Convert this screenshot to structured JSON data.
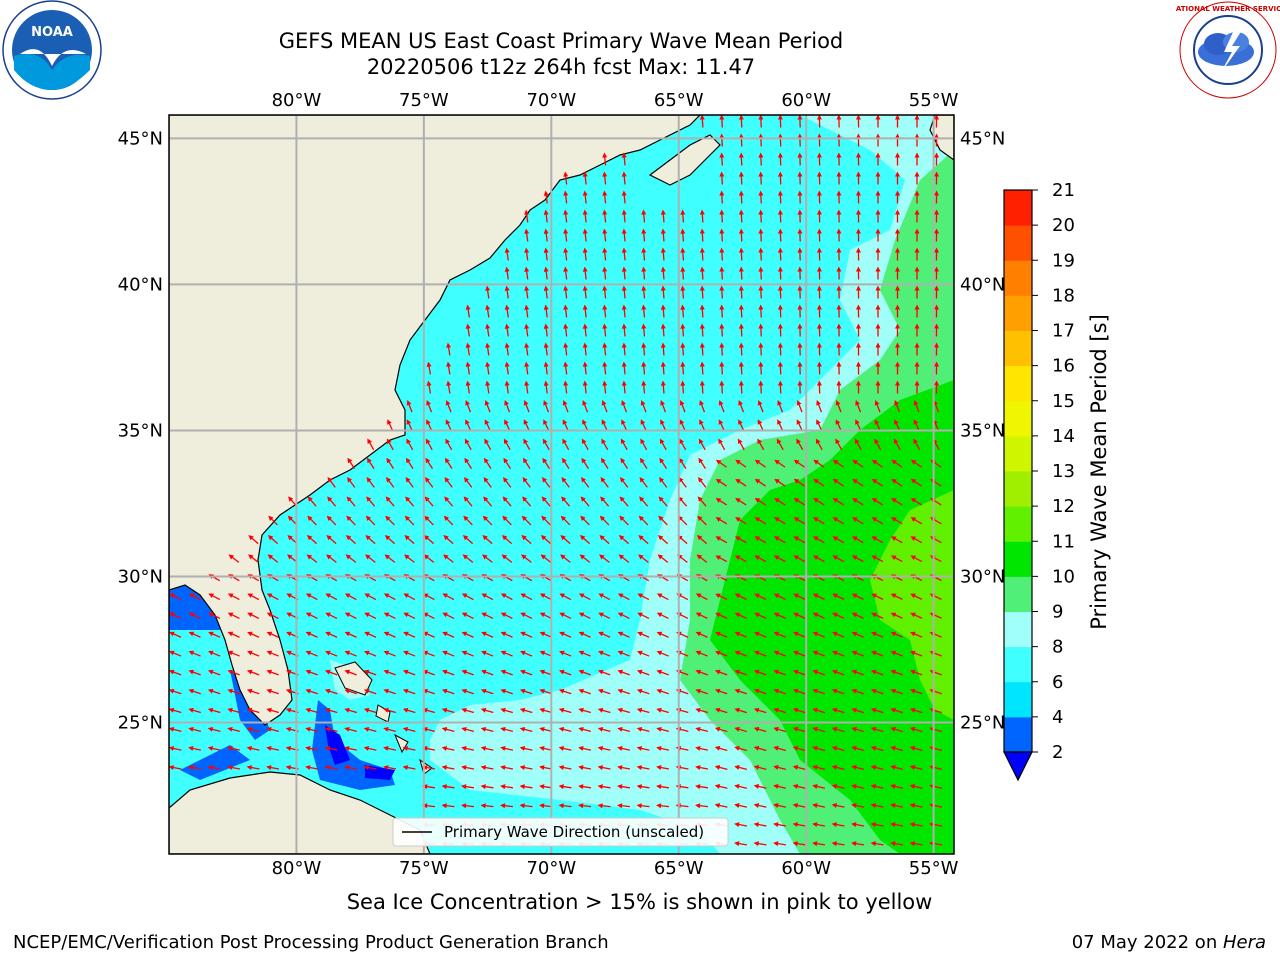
{
  "title": {
    "line1": "GEFS MEAN US East Coast Primary Wave Mean Period",
    "line2": "20220506 t12z 264h fcst   Max: 11.47"
  },
  "map": {
    "lon_labels": [
      "80°W",
      "75°W",
      "70°W",
      "65°W",
      "60°W",
      "55°W"
    ],
    "lat_labels": [
      "45°N",
      "40°N",
      "35°N",
      "30°N",
      "25°N"
    ],
    "lon_values": [
      -80,
      -75,
      -70,
      -65,
      -60,
      -55
    ],
    "lat_values": [
      45,
      40,
      35,
      30,
      25
    ],
    "extent": {
      "lon_min": -85,
      "lon_max": -54.2,
      "lat_min": 20.5,
      "lat_max": 45.8
    },
    "legend_label": "Primary Wave Direction (unscaled)",
    "colors": {
      "land": "#efeddc",
      "grid": "#b0b0b0",
      "arrow": "#ff0000",
      "coast": "#000000"
    }
  },
  "colorbar": {
    "label": "Primary Wave Mean Period [s]",
    "ticks": [
      "2",
      "4",
      "6",
      "8",
      "9",
      "10",
      "11",
      "12",
      "13",
      "14",
      "15",
      "16",
      "17",
      "18",
      "19",
      "20",
      "21"
    ],
    "colors": [
      "#0064ff",
      "#00e5ff",
      "#40ffff",
      "#a0fff8",
      "#50f078",
      "#00e600",
      "#60f000",
      "#a0ef00",
      "#d0f500",
      "#f0f500",
      "#ffe600",
      "#ffc000",
      "#ffa000",
      "#ff8000",
      "#ff5000",
      "#ff2000",
      "#ff0000"
    ],
    "under_color": "#0000ff"
  },
  "subtitle": "Sea Ice Concentration > 15% is shown in pink to yellow",
  "footer": {
    "left": "NCEP/EMC/Verification Post Processing Product Generation Branch",
    "right_date": "07 May 2022 on ",
    "right_machine": "Hera"
  },
  "logos": {
    "noaa_text": "NOAA",
    "nws_text": "NATIONAL WEATHER SERVICE"
  }
}
